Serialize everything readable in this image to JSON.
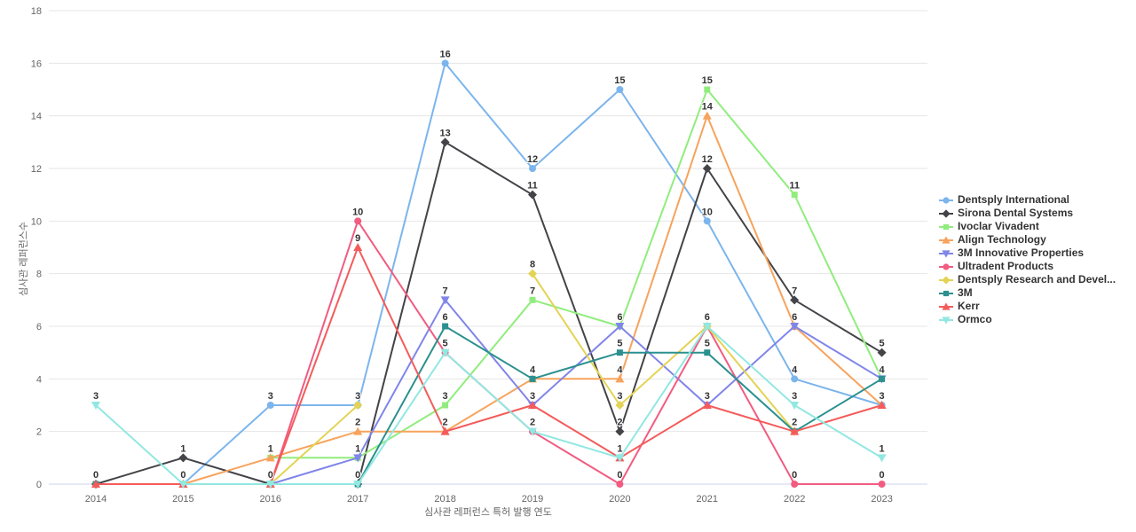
{
  "chart_data": {
    "type": "line",
    "title": "",
    "xlabel": "심사관 레퍼런스 특허 발행 연도",
    "ylabel": "심사관 레퍼런스수",
    "categories": [
      "2014",
      "2015",
      "2016",
      "2017",
      "2018",
      "2019",
      "2020",
      "2021",
      "2022",
      "2023"
    ],
    "ylim": [
      0,
      18
    ],
    "y_ticks": [
      0,
      2,
      4,
      6,
      8,
      10,
      12,
      14,
      16,
      18
    ],
    "grid": true,
    "legend_position": "right",
    "data_labels": true,
    "axis_line_color": "#ccd6eb",
    "grid_color": "#e6e6e6",
    "series": [
      {
        "name": "Dentsply International",
        "color": "#7cb5ec",
        "marker": "circle",
        "values": [
          null,
          0,
          3,
          3,
          16,
          12,
          15,
          10,
          4,
          3
        ]
      },
      {
        "name": "Sirona Dental Systems",
        "color": "#434348",
        "marker": "diamond",
        "values": [
          0,
          1,
          0,
          0,
          13,
          11,
          2,
          12,
          7,
          5
        ]
      },
      {
        "name": "Ivoclar Vivadent",
        "color": "#90ed7d",
        "marker": "square",
        "values": [
          null,
          null,
          1,
          1,
          3,
          7,
          6,
          15,
          11,
          4
        ]
      },
      {
        "name": "Align Technology",
        "color": "#f7a35c",
        "marker": "triangle",
        "values": [
          null,
          0,
          1,
          2,
          2,
          4,
          4,
          14,
          6,
          3
        ]
      },
      {
        "name": "3M Innovative Properties",
        "color": "#8085e9",
        "marker": "triangle-down",
        "values": [
          null,
          null,
          0,
          1,
          7,
          3,
          6,
          3,
          6,
          4
        ]
      },
      {
        "name": "Ultradent Products",
        "color": "#f15c80",
        "marker": "circle",
        "values": [
          null,
          null,
          0,
          10,
          5,
          2,
          0,
          6,
          0,
          0
        ]
      },
      {
        "name": "Dentsply Research and Devel...",
        "color": "#e4d354",
        "marker": "diamond",
        "values": [
          null,
          null,
          0,
          3,
          null,
          8,
          3,
          6,
          2,
          null
        ]
      },
      {
        "name": "3M",
        "color": "#2b908f",
        "marker": "square",
        "values": [
          0,
          0,
          0,
          0,
          6,
          4,
          5,
          5,
          2,
          4
        ]
      },
      {
        "name": "Kerr",
        "color": "#f45b5b",
        "marker": "triangle",
        "values": [
          0,
          0,
          0,
          9,
          2,
          3,
          1,
          3,
          2,
          3
        ]
      },
      {
        "name": "Ormco",
        "color": "#91e8e1",
        "marker": "triangle-down",
        "values": [
          3,
          0,
          0,
          0,
          5,
          2,
          1,
          6,
          3,
          1
        ]
      }
    ]
  }
}
